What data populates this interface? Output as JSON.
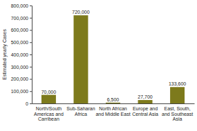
{
  "chart_data": {
    "type": "bar",
    "y_label": "Estimated yearly Cases",
    "categories": [
      "North/South\nAmericas and\nCarribean",
      "Sub-Saharan\nAfrica",
      "North African\nand Middle East",
      "Europe and\nCentral Asia",
      "East, South,\nand Southeast\nAsia"
    ],
    "values": [
      70000,
      720000,
      6500,
      27700,
      133600
    ],
    "value_labels": [
      "70,000",
      "720,000",
      "6,500",
      "27,700",
      "133,600"
    ],
    "color": "#7d7a1c",
    "ylim": [
      0,
      800000
    ],
    "yticks": [
      0,
      {
        "value": 100000,
        "label": "100,000"
      },
      {
        "value": 200000,
        "label": "200,000"
      },
      {
        "value": 300000,
        "label": "300,000"
      },
      {
        "value": 400000,
        "label": "400,000"
      },
      {
        "value": 500000,
        "label": "500,000"
      },
      {
        "value": 600000,
        "label": "600,000"
      },
      {
        "value": 700000,
        "label": "700,000"
      },
      {
        "value": 800000,
        "label": "800,000"
      }
    ],
    "grid": false,
    "data_labels": true
  }
}
